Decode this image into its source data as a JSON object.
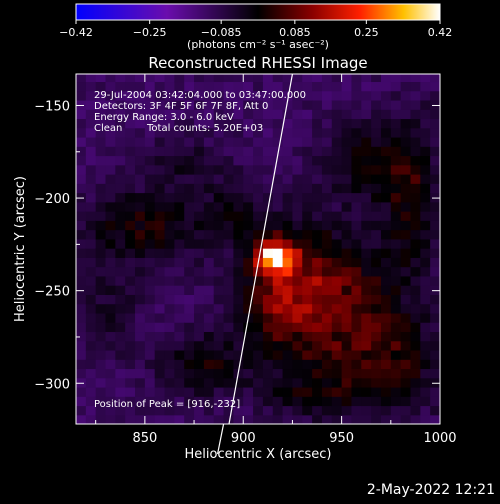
{
  "chart_data": {
    "type": "heatmap",
    "title": "Reconstructed RHESSI Image",
    "xlabel": "Heliocentric X (arcsec)",
    "ylabel": "Heliocentric Y (arcsec)",
    "xlim": [
      815,
      1000
    ],
    "ylim": [
      -322,
      -133
    ],
    "x_ticks": [
      850,
      900,
      950,
      1000
    ],
    "y_ticks": [
      -150,
      -200,
      -250,
      -300
    ],
    "colorbar": {
      "label": "(photons cm⁻² s⁻¹ asec⁻²)",
      "ticks": [
        "-0.42",
        "-0.25",
        "-0.085",
        "0.085",
        "0.25",
        "0.42"
      ],
      "range": [
        -0.42,
        0.42
      ]
    },
    "annotations": {
      "time": "29-Jul-2004 03:42:04.000 to 03:47:00.000",
      "detectors": "Detectors: 3F 4F 5F 6F 7F 8F, Att 0",
      "energy": "Energy Range: 3.0 - 6.0 keV",
      "clean": "Clean",
      "counts": "Total counts: 5.20E+03",
      "peak": "Position of Peak = [916,-232]"
    },
    "peak": {
      "x": 916,
      "y": -232,
      "value": 0.42
    },
    "limb_line": [
      [
        890,
        -322
      ],
      [
        925,
        -133
      ]
    ],
    "emission_blobs": [
      {
        "x": 916,
        "y": -232,
        "amp": 0.4,
        "sx": 6,
        "sy": 6
      },
      {
        "x": 920,
        "y": -250,
        "amp": 0.18,
        "sx": 16,
        "sy": 24
      },
      {
        "x": 950,
        "y": -255,
        "amp": 0.16,
        "sx": 22,
        "sy": 26
      },
      {
        "x": 975,
        "y": -290,
        "amp": 0.12,
        "sx": 20,
        "sy": 18
      },
      {
        "x": 985,
        "y": -195,
        "amp": 0.13,
        "sx": 10,
        "sy": 28
      },
      {
        "x": 960,
        "y": -180,
        "amp": 0.11,
        "sx": 14,
        "sy": 14
      },
      {
        "x": 850,
        "y": -215,
        "amp": 0.13,
        "sx": 22,
        "sy": 14
      },
      {
        "x": 830,
        "y": -260,
        "amp": 0.07,
        "sx": 12,
        "sy": 16
      },
      {
        "x": 880,
        "y": -290,
        "amp": 0.11,
        "sx": 16,
        "sy": 12
      },
      {
        "x": 870,
        "y": -180,
        "amp": 0.06,
        "sx": 16,
        "sy": 10
      },
      {
        "x": 895,
        "y": -205,
        "amp": 0.07,
        "sx": 12,
        "sy": 12
      },
      {
        "x": 935,
        "y": -305,
        "amp": 0.08,
        "sx": 18,
        "sy": 10
      }
    ],
    "background_level": -0.11
  },
  "footer": {
    "timestamp": "2-May-2022 12:21"
  }
}
